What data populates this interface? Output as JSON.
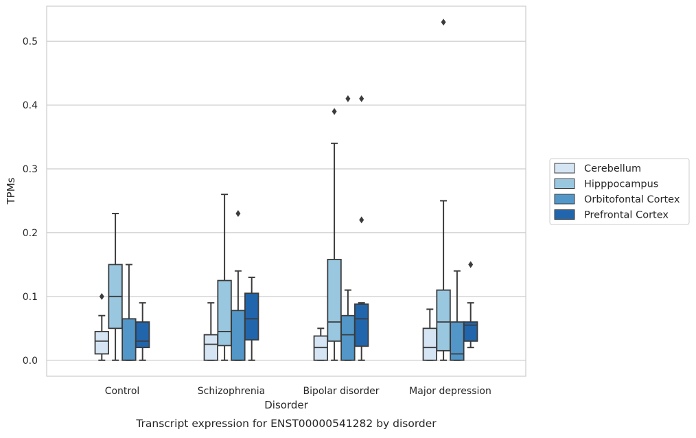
{
  "chart_data": {
    "type": "box",
    "title": "",
    "caption": "Transcript expression for ENST00000541282 by disorder",
    "xlabel": "Disorder",
    "ylabel": "TPMs",
    "ylim": [
      -0.025,
      0.555
    ],
    "yticks": [
      "0.0",
      "0.1",
      "0.2",
      "0.3",
      "0.4",
      "0.5"
    ],
    "ytick_values": [
      0.0,
      0.1,
      0.2,
      0.3,
      0.4,
      0.5
    ],
    "grid": "horizontal",
    "legend_position": "right",
    "categories": [
      "Control",
      "Schizophrenia",
      "Bipolar disorder",
      "Major depression"
    ],
    "series": [
      {
        "name": "Cerebellum",
        "color": "#d6e5f4",
        "boxes": [
          {
            "whislo": 0.0,
            "q1": 0.01,
            "med": 0.03,
            "q3": 0.045,
            "whishi": 0.07,
            "fliers": [
              0.1
            ]
          },
          {
            "whislo": 0.0,
            "q1": 0.0,
            "med": 0.025,
            "q3": 0.04,
            "whishi": 0.09,
            "fliers": []
          },
          {
            "whislo": 0.0,
            "q1": 0.0,
            "med": 0.02,
            "q3": 0.038,
            "whishi": 0.05,
            "fliers": []
          },
          {
            "whislo": 0.0,
            "q1": 0.0,
            "med": 0.02,
            "q3": 0.05,
            "whishi": 0.08,
            "fliers": []
          }
        ]
      },
      {
        "name": "Hipppocampus",
        "color": "#9ac7e0",
        "boxes": [
          {
            "whislo": 0.0,
            "q1": 0.05,
            "med": 0.1,
            "q3": 0.15,
            "whishi": 0.23,
            "fliers": []
          },
          {
            "whislo": 0.0,
            "q1": 0.023,
            "med": 0.045,
            "q3": 0.125,
            "whishi": 0.26,
            "fliers": []
          },
          {
            "whislo": 0.0,
            "q1": 0.03,
            "med": 0.06,
            "q3": 0.158,
            "whishi": 0.34,
            "fliers": [
              0.39
            ]
          },
          {
            "whislo": 0.0,
            "q1": 0.015,
            "med": 0.06,
            "q3": 0.11,
            "whishi": 0.25,
            "fliers": [
              0.53
            ]
          }
        ]
      },
      {
        "name": "Orbitofontal Cortex",
        "color": "#5297c8",
        "boxes": [
          {
            "whislo": 0.0,
            "q1": 0.0,
            "med": 0.0,
            "q3": 0.065,
            "whishi": 0.15,
            "fliers": []
          },
          {
            "whislo": 0.0,
            "q1": 0.0,
            "med": 0.0,
            "q3": 0.078,
            "whishi": 0.14,
            "fliers": [
              0.23
            ]
          },
          {
            "whislo": 0.0,
            "q1": 0.0,
            "med": 0.04,
            "q3": 0.07,
            "whishi": 0.11,
            "fliers": [
              0.41
            ]
          },
          {
            "whislo": 0.0,
            "q1": 0.0,
            "med": 0.01,
            "q3": 0.06,
            "whishi": 0.14,
            "fliers": []
          }
        ]
      },
      {
        "name": "Prefrontal Cortex",
        "color": "#2166ac",
        "boxes": [
          {
            "whislo": 0.0,
            "q1": 0.02,
            "med": 0.03,
            "q3": 0.06,
            "whishi": 0.09,
            "fliers": []
          },
          {
            "whislo": 0.0,
            "q1": 0.032,
            "med": 0.065,
            "q3": 0.105,
            "whishi": 0.13,
            "fliers": []
          },
          {
            "whislo": 0.0,
            "q1": 0.022,
            "med": 0.065,
            "q3": 0.088,
            "whishi": 0.09,
            "fliers": [
              0.22,
              0.41
            ]
          },
          {
            "whislo": 0.02,
            "q1": 0.03,
            "med": 0.055,
            "q3": 0.06,
            "whishi": 0.09,
            "fliers": [
              0.15
            ]
          }
        ]
      }
    ]
  }
}
